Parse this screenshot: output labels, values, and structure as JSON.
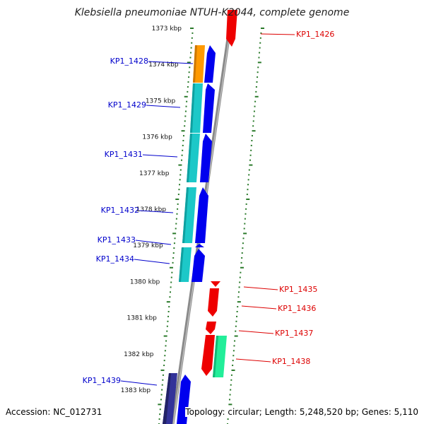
{
  "title": "Klebsiella pneumoniae NTUH-K2044, complete genome",
  "accession_text": "Accession: NC_012731",
  "summary_text": "Topology: circular; Length: 5,248,520 bp; Genes: 5,110",
  "colors": {
    "backbone": "#888888",
    "tick": "#2a7a2a",
    "plus_gene": "#0000ee",
    "minus_gene": "#ee0000",
    "cds_cyan": "#1cc8c8",
    "cds_orange": "#ff9900",
    "cds_green": "#22ee99",
    "cds_indigo": "#333399",
    "label_blue": "#0000cc",
    "label_red": "#dd0000"
  },
  "scale_labels": [
    "1373 kbp",
    "1374 kbp",
    "1375 kbp",
    "1376 kbp",
    "1377 kbp",
    "1378 kbp",
    "1379 kbp",
    "1380 kbp",
    "1381 kbp",
    "1382 kbp",
    "1383 kbp"
  ],
  "left_labels": [
    "KP1_1428",
    "KP1_1429",
    "KP1_1431",
    "KP1_1432",
    "KP1_1433",
    "KP1_1434",
    "KP1_1439"
  ],
  "right_labels": [
    "KP1_1426",
    "KP1_1435",
    "KP1_1436",
    "KP1_1437",
    "KP1_1438"
  ]
}
